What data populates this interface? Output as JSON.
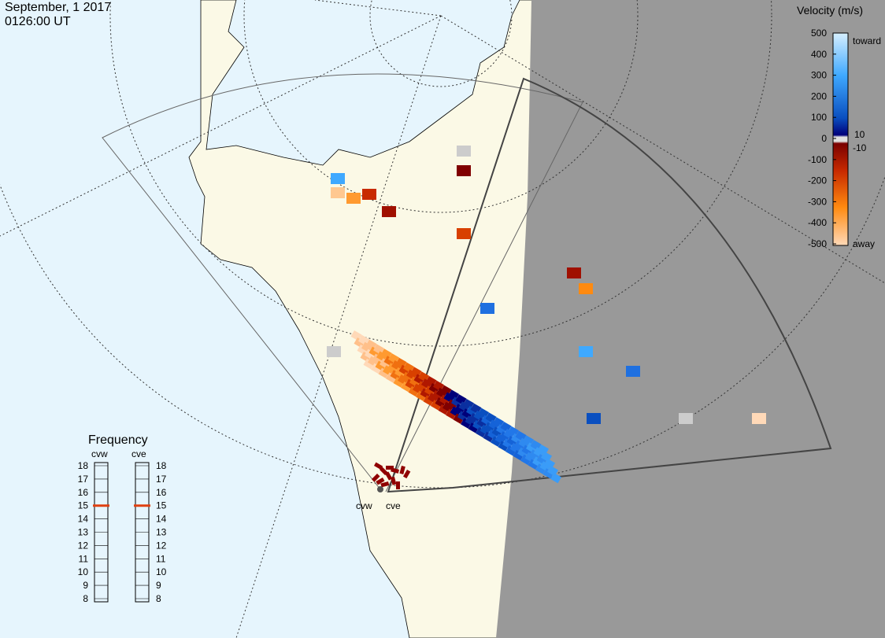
{
  "header": {
    "date": "September, 1 2017",
    "time": "0126:00 UT"
  },
  "velocity_scale": {
    "title": "Velocity (m/s)",
    "ticks": [
      500,
      400,
      300,
      200,
      100,
      0,
      -100,
      -200,
      -300,
      -400,
      -500
    ],
    "inner_ticks": [
      10,
      -10
    ],
    "toward": "toward",
    "away": "away"
  },
  "frequency": {
    "title": "Frequency",
    "ticks": [
      18,
      17,
      16,
      15,
      14,
      13,
      12,
      11,
      10,
      9,
      8
    ],
    "radars": [
      {
        "name": "cvw",
        "value": 15
      },
      {
        "name": "cve",
        "value": 15
      }
    ]
  },
  "stations": [
    "cvw",
    "cve"
  ]
}
